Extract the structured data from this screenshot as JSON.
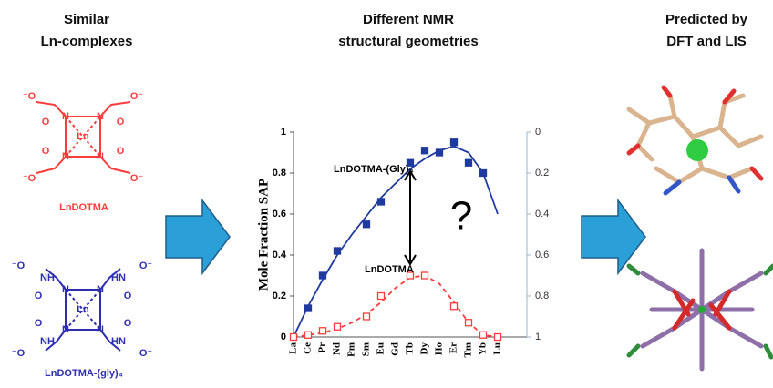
{
  "left": {
    "title": [
      "Similar",
      "Ln-complexes"
    ],
    "red": {
      "atoms": [
        "⁻O",
        "O⁻",
        "O",
        "O",
        "N",
        "N",
        "Ln",
        "N",
        "N",
        "O",
        "O",
        "⁻O",
        "O⁻"
      ],
      "label": "LnDOTMA"
    },
    "blue": {
      "atoms": [
        "⁻O",
        "O⁻",
        "NH",
        "HN",
        "O",
        "O",
        "N",
        "N",
        "Ln",
        "N",
        "N",
        "O",
        "O",
        "NH",
        "HN",
        "⁻O",
        "O⁻"
      ],
      "label": "LnDOTMA-(gly)₄"
    }
  },
  "middle_title": [
    "Different NMR",
    "structural geometries"
  ],
  "right_title": [
    "Predicted by",
    "DFT and LIS"
  ],
  "chart_data": {
    "type": "line",
    "ylabel": "Mole Fraction SAP",
    "categories": [
      "La",
      "Ce",
      "Pr",
      "Nd",
      "Pm",
      "Sm",
      "Eu",
      "Gd",
      "Tb",
      "Dy",
      "Ho",
      "Er",
      "Tm",
      "Yb",
      "Lu"
    ],
    "ylim": [
      0,
      1
    ],
    "yticks": [
      0,
      0.2,
      0.4,
      0.6,
      0.8,
      1
    ],
    "y2lim": [
      1,
      0
    ],
    "y2ticks": [
      0,
      0.2,
      0.4,
      0.6,
      0.8,
      1
    ],
    "series": [
      {
        "name": "LnDOTMA-(Gly)₄",
        "color": "#1f3a9e",
        "marker": "filled",
        "line_style": "solid",
        "values": [
          null,
          0.14,
          0.3,
          0.42,
          null,
          0.55,
          0.66,
          null,
          0.85,
          0.91,
          0.9,
          0.95,
          0.85,
          0.8,
          null
        ],
        "fit_values": [
          0,
          0.15,
          0.28,
          0.4,
          0.5,
          0.59,
          0.68,
          0.75,
          0.82,
          0.87,
          0.91,
          0.93,
          0.9,
          0.8,
          0.6
        ]
      },
      {
        "name": "LnDOTMA",
        "color": "#ff3b3b",
        "marker": "open",
        "line_style": "dashed",
        "values": [
          0,
          0.01,
          0.03,
          0.05,
          null,
          0.1,
          0.2,
          null,
          0.3,
          0.3,
          null,
          0.15,
          0.07,
          0.01,
          0
        ],
        "fit_values": [
          0,
          0.01,
          0.02,
          0.04,
          0.07,
          0.11,
          0.17,
          0.24,
          0.29,
          0.3,
          0.26,
          0.17,
          0.07,
          0.01,
          0
        ]
      }
    ],
    "annotation": "?"
  }
}
